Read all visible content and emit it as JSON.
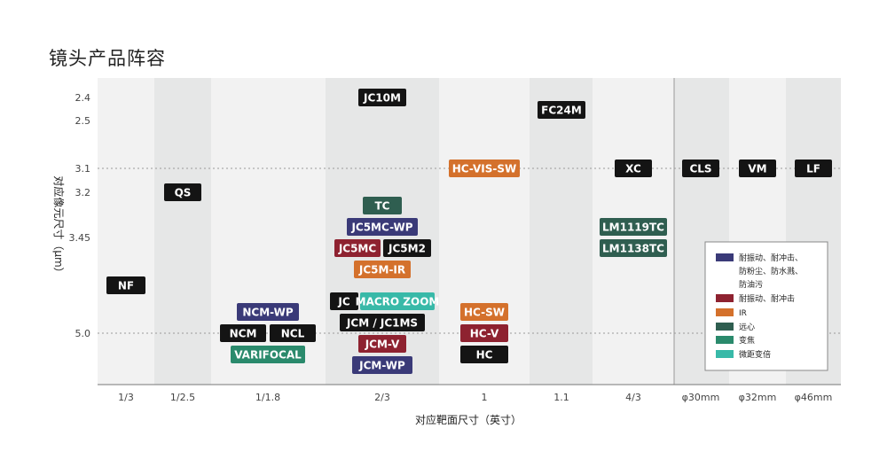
{
  "title": "镜头产品阵容",
  "chart_data": {
    "type": "table",
    "xlabel": "对应靶面尺寸（英寸）",
    "ylabel": "对应像元尺寸（μm）",
    "x_categories": [
      "1/3",
      "1/2.5",
      "1/1.8",
      "2/3",
      "1",
      "1.1",
      "4/3",
      "φ30mm",
      "φ32mm",
      "φ46mm"
    ],
    "y_ticks": [
      "2.4",
      "2.5",
      "3.1",
      "3.2",
      "3.45",
      "5.0"
    ],
    "y_ticks_dotted": [
      "3.1",
      "5.0"
    ],
    "colors": {
      "black": "#141414",
      "navy": "#3a3a78",
      "red": "#8e2230",
      "orange": "#d4712c",
      "darkgreen": "#2f5e50",
      "green": "#2a8a6c",
      "teal": "#38b9a8"
    },
    "legend": [
      {
        "color": "navy",
        "label_lines": [
          "耐振动、耐冲击、",
          "防粉尘、防水溅、",
          "防油污"
        ]
      },
      {
        "color": "red",
        "label_lines": [
          "耐振动、耐冲击"
        ]
      },
      {
        "color": "orange",
        "label_lines": [
          "IR"
        ]
      },
      {
        "color": "darkgreen",
        "label_lines": [
          "远心"
        ]
      },
      {
        "color": "green",
        "label_lines": [
          "变焦"
        ]
      },
      {
        "color": "teal",
        "label_lines": [
          "微距变倍"
        ]
      }
    ],
    "products": [
      {
        "name": "NF",
        "x": "1/3",
        "y": "between 3.45 and 5.0",
        "color": "black"
      },
      {
        "name": "QS",
        "x": "1/2.5",
        "y": "3.2",
        "color": "black"
      },
      {
        "name": "NCM-WP",
        "x": "1/1.8",
        "y": "5.0 (upper)",
        "color": "navy"
      },
      {
        "name": "NCM",
        "x": "1/1.8",
        "y": "5.0",
        "color": "black"
      },
      {
        "name": "NCL",
        "x": "1/1.8",
        "y": "5.0",
        "color": "black"
      },
      {
        "name": "VARIFOCAL",
        "x": "1/1.8",
        "y": "5.0 (lower)",
        "color": "green"
      },
      {
        "name": "JC10M",
        "x": "2/3",
        "y": "2.4",
        "color": "black"
      },
      {
        "name": "TC",
        "x": "2/3",
        "y": "3.2",
        "color": "darkgreen"
      },
      {
        "name": "JC5MC-WP",
        "x": "2/3",
        "y": "3.45 (upper)",
        "color": "navy"
      },
      {
        "name": "JC5MC",
        "x": "2/3",
        "y": "3.45",
        "color": "red"
      },
      {
        "name": "JC5M2",
        "x": "2/3",
        "y": "3.45",
        "color": "black"
      },
      {
        "name": "JC5M-IR",
        "x": "2/3",
        "y": "3.45 (lower)",
        "color": "orange"
      },
      {
        "name": "JC",
        "x": "2/3",
        "y": "between 3.45 and 5.0",
        "color": "black"
      },
      {
        "name": "MACRO ZOOM",
        "x": "2/3",
        "y": "between 3.45 and 5.0",
        "color": "teal"
      },
      {
        "name": "JCM / JC1MS",
        "x": "2/3",
        "y": "5.0 (upper)",
        "color": "black"
      },
      {
        "name": "JCM-V",
        "x": "2/3",
        "y": "5.0 (lower)",
        "color": "red"
      },
      {
        "name": "JCM-WP",
        "x": "2/3",
        "y": "5.0 (lowest)",
        "color": "navy"
      },
      {
        "name": "HC-VIS-SW",
        "x": "1",
        "y": "3.1",
        "color": "orange"
      },
      {
        "name": "HC-SW",
        "x": "1",
        "y": "5.0 (upper)",
        "color": "orange"
      },
      {
        "name": "HC-V",
        "x": "1",
        "y": "5.0",
        "color": "red"
      },
      {
        "name": "HC",
        "x": "1",
        "y": "5.0 (lower)",
        "color": "black"
      },
      {
        "name": "FC24M",
        "x": "1.1",
        "y": "2.5",
        "color": "black"
      },
      {
        "name": "XC",
        "x": "4/3",
        "y": "3.1",
        "color": "black"
      },
      {
        "name": "LM1119TC",
        "x": "4/3",
        "y": "3.45 (upper)",
        "color": "darkgreen"
      },
      {
        "name": "LM1138TC",
        "x": "4/3",
        "y": "3.45",
        "color": "darkgreen"
      },
      {
        "name": "CLS",
        "x": "φ30mm",
        "y": "3.1",
        "color": "black"
      },
      {
        "name": "VM",
        "x": "φ32mm",
        "y": "3.1",
        "color": "black"
      },
      {
        "name": "LF",
        "x": "φ46mm",
        "y": "3.1",
        "color": "black"
      }
    ]
  }
}
